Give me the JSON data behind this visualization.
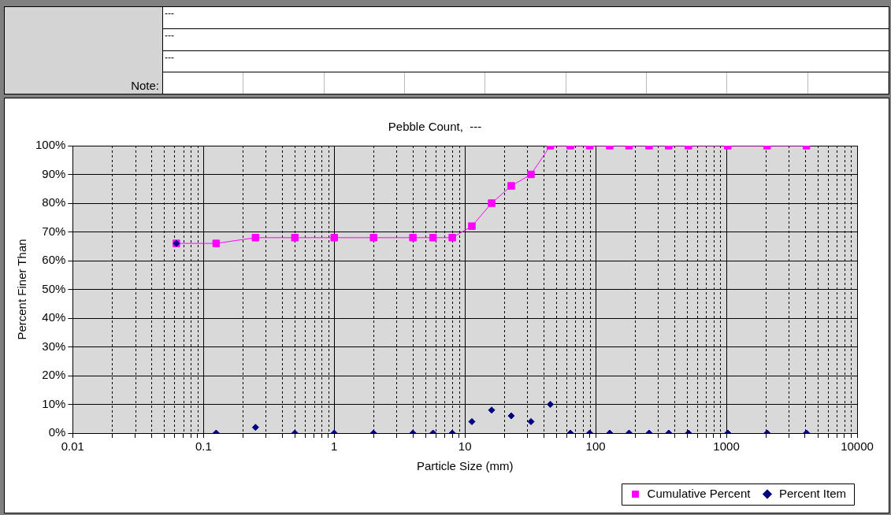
{
  "chart_data": {
    "type": "line",
    "title": "Pebble Count,  ---",
    "xlabel": "Particle Size (mm)",
    "ylabel": "Percent Finer Than",
    "annotations": [
      "---",
      "---",
      "---",
      "Note:"
    ],
    "x": [
      0.062,
      0.125,
      0.25,
      0.5,
      1,
      2,
      4,
      5.7,
      8,
      11.3,
      16,
      22.6,
      32,
      45,
      64,
      90,
      128,
      180,
      256,
      362,
      512,
      1024,
      2048,
      4096
    ],
    "series": [
      {
        "name": "Cumulative Percent",
        "marker": "square",
        "color": "#ff00ff",
        "values": [
          66,
          66,
          68,
          68,
          68,
          68,
          68,
          68,
          68,
          72,
          80,
          86,
          90,
          100,
          100,
          100,
          100,
          100,
          100,
          100,
          100,
          100,
          100,
          100
        ]
      },
      {
        "name": "Percent Item",
        "type": "scatter",
        "marker": "diamond",
        "color": "#000080",
        "values": [
          66,
          0,
          2,
          0,
          0,
          0,
          0,
          0,
          0,
          4,
          8,
          6,
          4,
          10,
          0,
          0,
          0,
          0,
          0,
          0,
          0,
          0,
          0,
          0
        ]
      }
    ],
    "log": "x",
    "xlim": [
      0.01,
      10000
    ],
    "xticks": [
      {
        "value": 0.01,
        "label": "0.01"
      },
      {
        "value": 0.02,
        "label": null
      },
      {
        "value": 0.03,
        "label": null
      },
      {
        "value": 0.04,
        "label": null
      },
      {
        "value": 0.05,
        "label": null
      },
      {
        "value": 0.06,
        "label": null
      },
      {
        "value": 0.07,
        "label": null
      },
      {
        "value": 0.08,
        "label": null
      },
      {
        "value": 0.09,
        "label": null
      },
      {
        "value": 0.1,
        "label": "0.1"
      },
      {
        "value": 0.2,
        "label": null
      },
      {
        "value": 0.3,
        "label": null
      },
      {
        "value": 0.4,
        "label": null
      },
      {
        "value": 0.5,
        "label": null
      },
      {
        "value": 0.6,
        "label": null
      },
      {
        "value": 0.7,
        "label": null
      },
      {
        "value": 0.8,
        "label": null
      },
      {
        "value": 0.9,
        "label": null
      },
      1,
      {
        "value": 2,
        "label": null
      },
      {
        "value": 3,
        "label": null
      },
      {
        "value": 4,
        "label": null
      },
      {
        "value": 5,
        "label": null
      },
      {
        "value": 6,
        "label": null
      },
      {
        "value": 7,
        "label": null
      },
      {
        "value": 8,
        "label": null
      },
      {
        "value": 9,
        "label": null
      },
      10,
      {
        "value": 20,
        "label": null
      },
      {
        "value": 30,
        "label": null
      },
      {
        "value": 40,
        "label": null
      },
      {
        "value": 50,
        "label": null
      },
      {
        "value": 60,
        "label": null
      },
      {
        "value": 70,
        "label": null
      },
      {
        "value": 80,
        "label": null
      },
      {
        "value": 90,
        "label": null
      },
      100,
      {
        "value": 200,
        "label": null
      },
      {
        "value": 300,
        "label": null
      },
      {
        "value": 400,
        "label": null
      },
      {
        "value": 500,
        "label": null
      },
      {
        "value": 600,
        "label": null
      },
      {
        "value": 700,
        "label": null
      },
      {
        "value": 800,
        "label": null
      },
      {
        "value": 900,
        "label": null
      },
      1000,
      {
        "value": 2000,
        "label": null
      },
      {
        "value": 3000,
        "label": null
      },
      {
        "value": 4000,
        "label": null
      },
      {
        "value": 5000,
        "label": null
      },
      {
        "value": 6000,
        "label": null
      },
      {
        "value": 7000,
        "label": null
      },
      {
        "value": 8000,
        "label": null
      },
      {
        "value": 9000,
        "label": null
      },
      10000
    ],
    "ylim": [
      0,
      100
    ],
    "yticks": [
      {
        "value": 0,
        "label": "0%"
      },
      {
        "value": 10,
        "label": "10%"
      },
      {
        "value": 20,
        "label": "20%"
      },
      {
        "value": 30,
        "label": "30%"
      },
      {
        "value": 40,
        "label": "40%"
      },
      {
        "value": 50,
        "label": "50%"
      },
      {
        "value": 60,
        "label": "60%"
      },
      {
        "value": 70,
        "label": "70%"
      },
      {
        "value": 80,
        "label": "80%"
      },
      {
        "value": 90,
        "label": "90%"
      },
      {
        "value": 100,
        "label": "100%"
      }
    ],
    "grid": true,
    "legend": "bottom right"
  }
}
